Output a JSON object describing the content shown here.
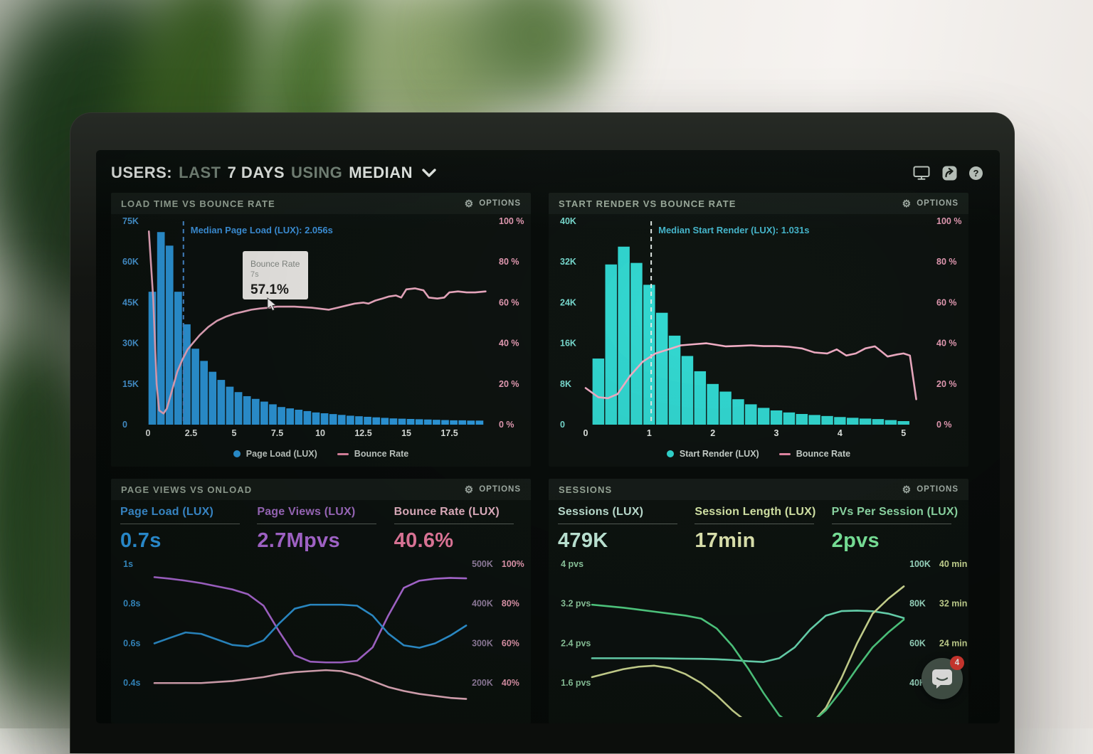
{
  "labels": {
    "options": "OPTIONS"
  },
  "header": {
    "title": {
      "users": "USERS:",
      "last": "LAST",
      "days": "7 DAYS",
      "using": "USING",
      "median": "MEDIAN"
    },
    "icons": [
      {
        "name": "display-icon"
      },
      {
        "name": "share-icon"
      },
      {
        "name": "help-icon"
      }
    ]
  },
  "chat": {
    "badge": "4"
  },
  "chart_data": [
    {
      "id": "load_time",
      "type": "bar",
      "title": "LOAD TIME VS BOUNCE RATE",
      "bar_color": "#2d9ce2",
      "line_color": "#f3aec6",
      "left_axis": {
        "color": "#4a9fe0",
        "ticks": [
          "75K",
          "60K",
          "45K",
          "30K",
          "15K",
          "0"
        ],
        "max_k": 75
      },
      "right_axis": {
        "color": "#ec9fb9",
        "ticks": [
          "100 %",
          "80 %",
          "60 %",
          "40 %",
          "20 %",
          "0 %"
        ]
      },
      "x_axis": {
        "color": "#e3e8e4",
        "ticks": [
          0,
          2.5,
          5,
          7.5,
          10,
          12.5,
          15,
          17.5
        ],
        "labels": [
          "0",
          "2.5",
          "5",
          "7.5",
          "10",
          "12.5",
          "15",
          "17.5"
        ],
        "max": 19.75
      },
      "bars": {
        "name": "Page Load (LUX)",
        "start": 0,
        "bin": 0.5,
        "values_k": [
          49,
          71,
          66,
          49,
          37,
          28,
          23.5,
          19.5,
          16.5,
          14,
          12,
          10.5,
          9.5,
          8.5,
          7.5,
          6.5,
          6,
          5.5,
          5,
          4.5,
          4.2,
          3.9,
          3.6,
          3.3,
          3.1,
          2.9,
          2.7,
          2.5,
          2.3,
          2.2,
          2.1,
          2,
          1.9,
          1.8,
          1.7,
          1.6,
          1.6,
          1.5,
          1.5
        ]
      },
      "line": {
        "name": "Bounce Rate",
        "points": [
          [
            0.05,
            95
          ],
          [
            0.3,
            62
          ],
          [
            0.5,
            20
          ],
          [
            0.65,
            7
          ],
          [
            0.9,
            5.5
          ],
          [
            1.1,
            8
          ],
          [
            1.4,
            17
          ],
          [
            1.7,
            26
          ],
          [
            2,
            32
          ],
          [
            2.3,
            37
          ],
          [
            2.6,
            40
          ],
          [
            3,
            44
          ],
          [
            3.5,
            48
          ],
          [
            4,
            51
          ],
          [
            4.5,
            53
          ],
          [
            5,
            54.5
          ],
          [
            5.5,
            55.5
          ],
          [
            6,
            56.5
          ],
          [
            6.5,
            57.1
          ],
          [
            7,
            57.5
          ],
          [
            7.5,
            58
          ],
          [
            8.5,
            58
          ],
          [
            9.5,
            57.5
          ],
          [
            10.5,
            56.5
          ],
          [
            11,
            57.5
          ],
          [
            11.5,
            58.5
          ],
          [
            12,
            59.5
          ],
          [
            12.5,
            60
          ],
          [
            12.8,
            59.5
          ],
          [
            13.2,
            61
          ],
          [
            13.6,
            62
          ],
          [
            14,
            63
          ],
          [
            14.4,
            63.5
          ],
          [
            14.7,
            62.5
          ],
          [
            15,
            66.5
          ],
          [
            15.5,
            67
          ],
          [
            16,
            66
          ],
          [
            16.3,
            62.5
          ],
          [
            16.8,
            62
          ],
          [
            17.2,
            62.5
          ],
          [
            17.5,
            65
          ],
          [
            18,
            65.5
          ],
          [
            18.5,
            65
          ],
          [
            19,
            65
          ],
          [
            19.6,
            65.5
          ]
        ]
      },
      "median": {
        "x": 2.056,
        "label": "Median Page Load (LUX): 2.056s",
        "label_color": "#3f9ae8",
        "line_color": "#4a90d8"
      },
      "tooltip": {
        "title": "Bounce Rate",
        "subtitle": "7s",
        "value": "57.1%"
      },
      "legend": [
        {
          "swatch": "dot",
          "color": "#2d9ce2",
          "label": "Page Load (LUX)"
        },
        {
          "swatch": "line",
          "color": "#e88aa8",
          "label": "Bounce Rate"
        }
      ]
    },
    {
      "id": "start_render",
      "type": "bar",
      "title": "START RENDER VS BOUNCE RATE",
      "bar_color": "#30d9d2",
      "line_color": "#f3aec6",
      "left_axis": {
        "color": "#79ded2",
        "ticks": [
          "40K",
          "32K",
          "24K",
          "16K",
          "8K",
          "0"
        ],
        "max_k": 40
      },
      "right_axis": {
        "color": "#ec9fb9",
        "ticks": [
          "100 %",
          "80 %",
          "60 %",
          "40 %",
          "20 %",
          "0 %"
        ]
      },
      "x_axis": {
        "color": "#e3e8e4",
        "ticks": [
          0,
          1,
          2,
          3,
          4,
          5
        ],
        "labels": [
          "0",
          "1",
          "2",
          "3",
          "4",
          "5"
        ],
        "max": 5.35
      },
      "bars": {
        "name": "Start Render (LUX)",
        "start": 0.1,
        "bin": 0.2,
        "values_k": [
          13,
          31.5,
          35,
          31.8,
          27.5,
          22,
          17.5,
          13.5,
          10.5,
          8,
          6.5,
          5,
          4,
          3.3,
          2.8,
          2.4,
          2.1,
          1.9,
          1.7,
          1.5,
          1.35,
          1.2,
          1.1,
          0.9,
          0.7
        ]
      },
      "line": {
        "name": "Bounce Rate",
        "points": [
          [
            0,
            18
          ],
          [
            0.2,
            13.5
          ],
          [
            0.35,
            13
          ],
          [
            0.5,
            15
          ],
          [
            0.7,
            24
          ],
          [
            0.9,
            31
          ],
          [
            1.1,
            35
          ],
          [
            1.3,
            37
          ],
          [
            1.5,
            39
          ],
          [
            1.7,
            39.5
          ],
          [
            1.9,
            40
          ],
          [
            2,
            39.5
          ],
          [
            2.2,
            38.5
          ],
          [
            2.4,
            38.7
          ],
          [
            2.6,
            39
          ],
          [
            2.8,
            38.6
          ],
          [
            3,
            38.6
          ],
          [
            3.2,
            38.3
          ],
          [
            3.4,
            37.5
          ],
          [
            3.6,
            35.5
          ],
          [
            3.8,
            35
          ],
          [
            3.95,
            37
          ],
          [
            4.1,
            34
          ],
          [
            4.25,
            35
          ],
          [
            4.4,
            37.5
          ],
          [
            4.55,
            38.5
          ],
          [
            4.65,
            36
          ],
          [
            4.75,
            33.5
          ],
          [
            4.9,
            34.5
          ],
          [
            5,
            35
          ],
          [
            5.1,
            34
          ],
          [
            5.2,
            12.5
          ]
        ]
      },
      "median": {
        "x": 1.031,
        "label": "Median Start Render (LUX): 1.031s",
        "label_color": "#45b9cf",
        "line_color": "#e4ece8"
      },
      "legend": [
        {
          "swatch": "dot",
          "color": "#30d9d2",
          "label": "Start Render (LUX)"
        },
        {
          "swatch": "line",
          "color": "#e88aa8",
          "label": "Bounce Rate"
        }
      ]
    },
    {
      "id": "page_views",
      "type": "line",
      "title": "PAGE VIEWS VS ONLOAD",
      "metrics": [
        {
          "label": "Page Load (LUX)",
          "value": "0.7s",
          "label_color": "#3f9be4",
          "value_color": "#2fa1ef"
        },
        {
          "label": "Page Views (LUX)",
          "value": "2.7Mpvs",
          "label_color": "#a871cc",
          "value_color": "#b56fe0"
        },
        {
          "label": "Bounce Rate (LUX)",
          "value": "40.6%",
          "label_color": "#edb9ca",
          "value_color": "#f27fa5"
        }
      ],
      "left_axis": {
        "color": "#3d9fe0",
        "ticks": [
          {
            "label": "1s",
            "v": 1
          },
          {
            "label": "0.8s",
            "v": 0.8
          },
          {
            "label": "0.6s",
            "v": 0.6
          },
          {
            "label": "0.4s",
            "v": 0.4
          }
        ]
      },
      "right_axis_1": {
        "color": "#9b86a8",
        "ticks": [
          "500K",
          "400K",
          "300K",
          "200K"
        ],
        "t0": 500,
        "t1": 400
      },
      "right_axis_2": {
        "color": "#f0a0b8",
        "ticks": [
          "100%",
          "80%",
          "60%",
          "40%"
        ],
        "t0": 100,
        "t1": 80
      },
      "series": [
        {
          "name": "Bounce Rate (LUX)",
          "color": "#f3b9ca",
          "axis": "r2",
          "values": [
            40,
            40,
            40,
            40,
            40.5,
            41,
            42,
            43,
            44.5,
            45.5,
            46,
            46.5,
            46,
            44,
            41,
            38,
            36,
            34.5,
            33.5,
            32.5,
            32
          ]
        },
        {
          "name": "Page Views (LUX)",
          "color": "#b56fe0",
          "axis": "r1",
          "values": [
            467,
            463,
            458,
            452,
            444,
            436,
            424,
            395,
            330,
            270,
            254,
            252,
            252,
            256,
            290,
            370,
            440,
            458,
            463,
            465,
            464
          ]
        },
        {
          "name": "Page Load (LUX)",
          "color": "#2f9ce0",
          "axis": "left",
          "values": [
            0.6,
            0.628,
            0.655,
            0.648,
            0.62,
            0.592,
            0.585,
            0.615,
            0.7,
            0.775,
            0.795,
            0.795,
            0.795,
            0.79,
            0.74,
            0.65,
            0.59,
            0.578,
            0.6,
            0.64,
            0.69
          ]
        }
      ]
    },
    {
      "id": "sessions",
      "type": "line",
      "title": "SESSIONS",
      "metrics": [
        {
          "label": "Sessions (LUX)",
          "value": "479K",
          "label_color": "#c5e9da",
          "value_color": "#c9f4e3"
        },
        {
          "label": "Session Length (LUX)",
          "value": "17min",
          "label_color": "#dff0ae",
          "value_color": "#e9f0b8"
        },
        {
          "label": "PVs Per Session (LUX)",
          "value": "2pvs",
          "label_color": "#93e3ac",
          "value_color": "#7ff1a1"
        }
      ],
      "left_axis": {
        "color": "#94d3a6",
        "ticks": [
          {
            "label": "4 pvs",
            "v": 4
          },
          {
            "label": "3.2 pvs",
            "v": 3.2
          },
          {
            "label": "2.4 pvs",
            "v": 2.4
          },
          {
            "label": "1.6 pvs",
            "v": 1.6
          }
        ]
      },
      "right_axis_1": {
        "color": "#a5e8cf",
        "ticks": [
          "100K",
          "80K",
          "60K",
          "40K"
        ],
        "t0": 100,
        "t1": 80
      },
      "right_axis_2": {
        "color": "#d3e39a",
        "ticks": [
          "40 min",
          "32 min",
          "24 min",
          ""
        ],
        "t0": 40,
        "t1": 32
      },
      "series": [
        {
          "name": "Sessions (LUX)",
          "color": "#6fe6bd",
          "axis": "r1",
          "values": [
            52.5,
            52.5,
            52.5,
            52.5,
            52.5,
            52.4,
            52.3,
            52.2,
            52,
            51.6,
            51,
            50.6,
            52.5,
            58,
            67,
            74,
            76.3,
            76.5,
            76.2,
            75,
            72.8
          ]
        },
        {
          "name": "Session Length (LUX)",
          "color": "#dbe79b",
          "axis": "r2",
          "values": [
            17.2,
            18,
            18.8,
            19.3,
            19.5,
            19,
            17.8,
            16,
            13.5,
            10.5,
            8,
            6,
            5,
            5.5,
            7.5,
            11,
            17,
            24,
            30,
            33,
            35.5
          ]
        },
        {
          "name": "PVs Per Session (LUX)",
          "color": "#54d989",
          "axis": "left",
          "values": [
            3.18,
            3.15,
            3.12,
            3.08,
            3.04,
            3,
            2.96,
            2.9,
            2.7,
            2.35,
            1.9,
            1.4,
            0.95,
            0.72,
            0.78,
            1.05,
            1.45,
            1.9,
            2.32,
            2.62,
            2.88
          ]
        }
      ]
    }
  ]
}
